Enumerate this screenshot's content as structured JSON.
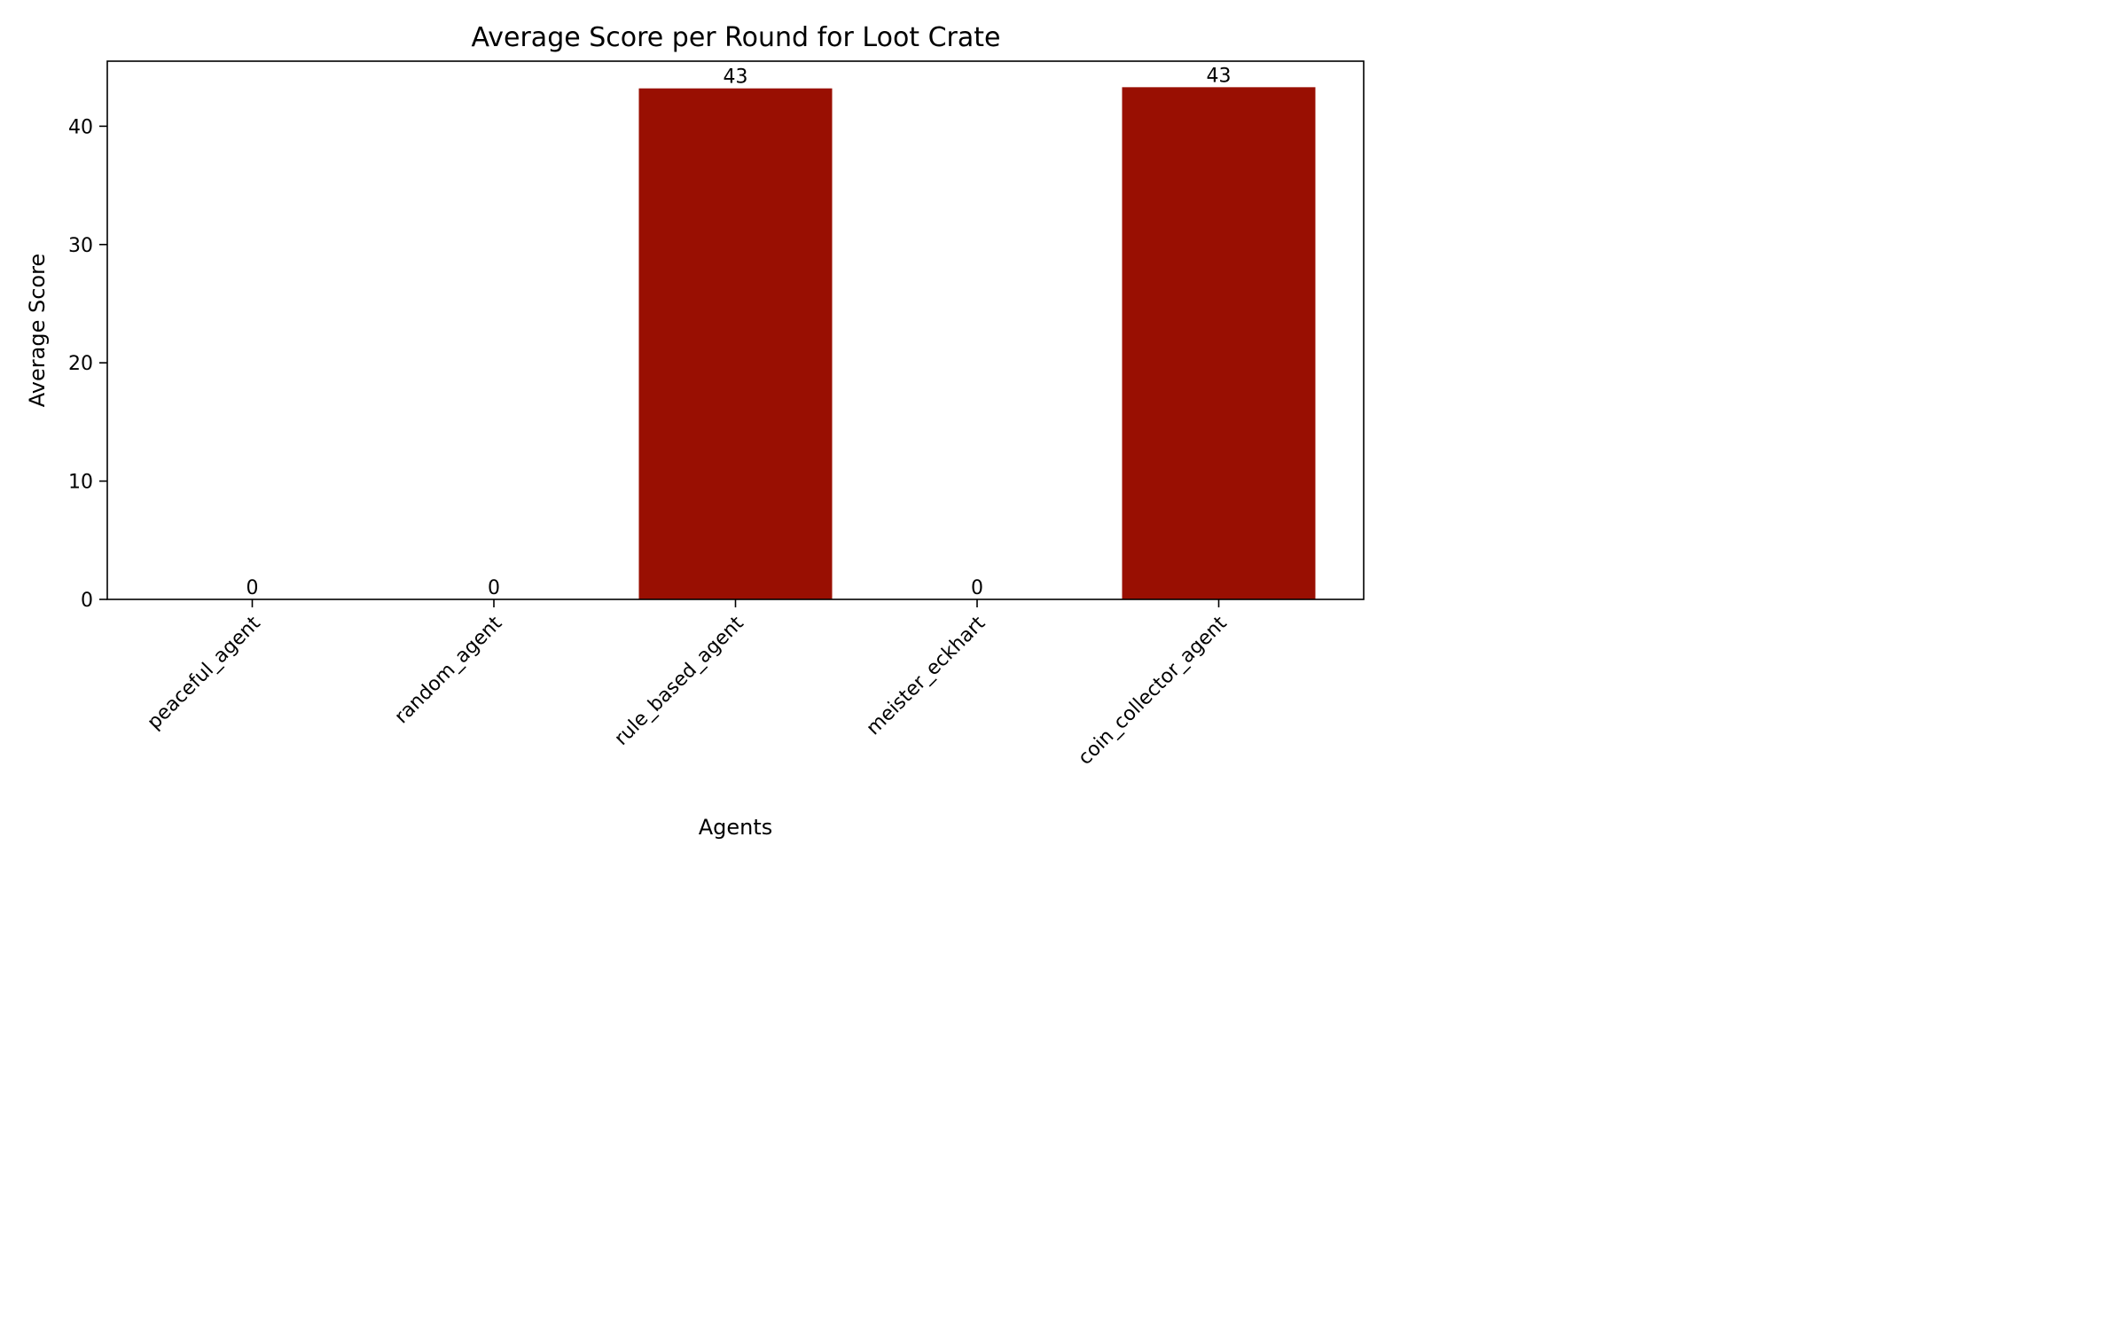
{
  "chart_data": {
    "type": "bar",
    "title": "Average Score per Round for Loot Crate",
    "xlabel": "Agents",
    "ylabel": "Average Score",
    "categories": [
      "peaceful_agent",
      "random_agent",
      "rule_based_agent",
      "meister_eckhart",
      "coin_collector_agent"
    ],
    "values": [
      0,
      0,
      43.2,
      0,
      43.3
    ],
    "value_labels": [
      "0",
      "0",
      "43",
      "0",
      "43"
    ],
    "ylim": [
      0,
      45.5
    ],
    "yticks": [
      0,
      10,
      20,
      30,
      40
    ],
    "bar_color": "#990f02",
    "grid": false,
    "legend": "none"
  }
}
